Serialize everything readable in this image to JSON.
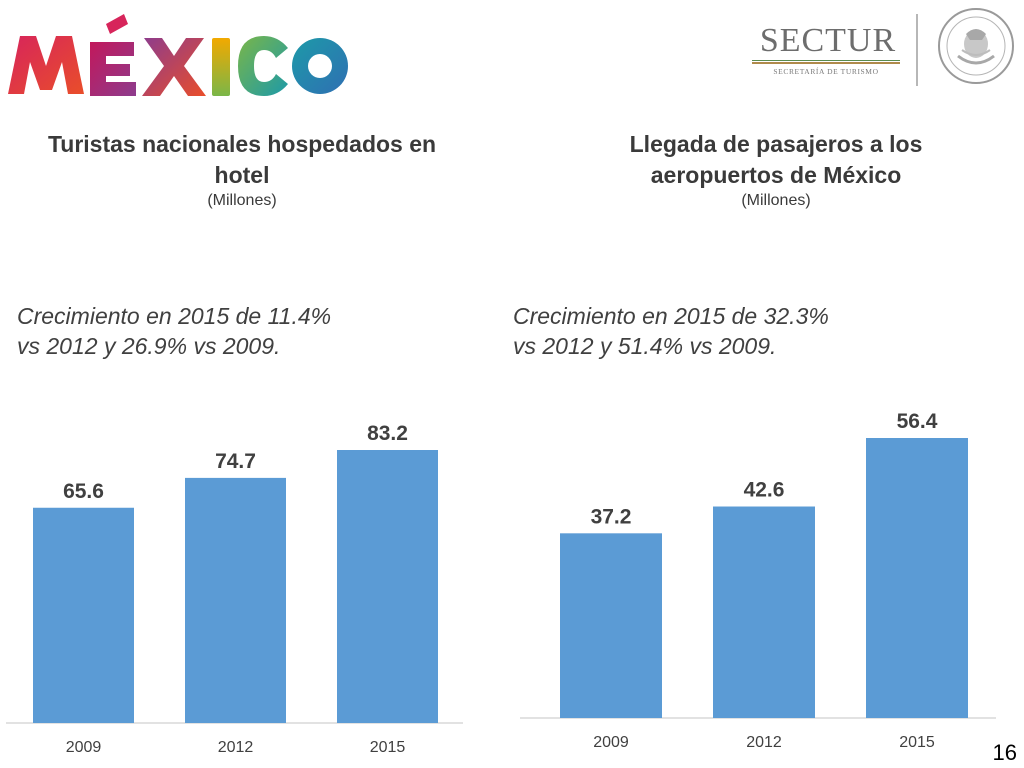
{
  "branding": {
    "logo_text": "MÉXICO",
    "ministry": "SECTUR",
    "ministry_subtitle": "SECRETARÍA DE TURISMO",
    "seal_text": "ESTADOS UNIDOS MEXICANOS"
  },
  "colors": {
    "bar": "#5b9bd5",
    "axis": "#d9d9d9",
    "logo": [
      "#d7255b",
      "#e94e2a",
      "#f2a900",
      "#1d9aa8",
      "#7ab648",
      "#8d3c8d"
    ]
  },
  "left": {
    "title_line1": "Turistas nacionales hospedados en",
    "title_line2": "hotel",
    "unit": "(Millones)",
    "note": "Crecimiento en 2015 de 11.4%\nvs 2012 y 26.9% vs 2009."
  },
  "right": {
    "title_line1": "Llegada de pasajeros a los",
    "title_line2": "aeropuertos de México",
    "unit": "(Millones)",
    "note": "Crecimiento en 2015 de 32.3%\nvs 2012 y 51.4% vs 2009."
  },
  "chart_data": [
    {
      "type": "bar",
      "title": "Turistas nacionales hospedados en hotel",
      "ylabel": "(Millones)",
      "categories": [
        "2009",
        "2012",
        "2015"
      ],
      "values": [
        65.6,
        74.7,
        83.2
      ],
      "value_labels": [
        "65.6",
        "74.7",
        "83.2"
      ],
      "ylim": [
        0,
        83.2
      ],
      "grid": false,
      "legend": "none"
    },
    {
      "type": "bar",
      "title": "Llegada de pasajeros a los aeropuertos de México",
      "ylabel": "(Millones)",
      "categories": [
        "2009",
        "2012",
        "2015"
      ],
      "values": [
        37.2,
        42.6,
        56.4
      ],
      "value_labels": [
        "37.2",
        "42.6",
        "56.4"
      ],
      "ylim": [
        0,
        56.4
      ],
      "grid": false,
      "legend": "none"
    }
  ],
  "page_number": "16"
}
